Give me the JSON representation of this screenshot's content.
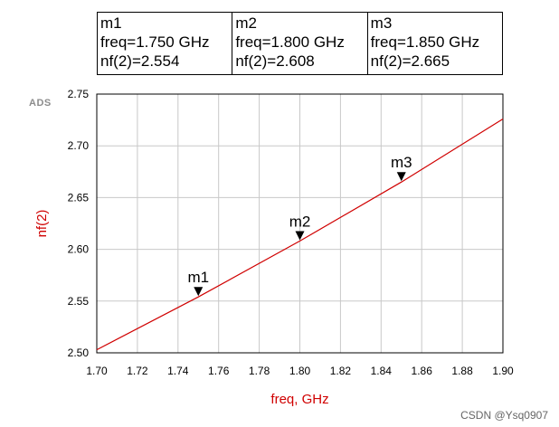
{
  "markers": [
    {
      "name": "m1",
      "freq_text": "freq=1.750 GHz",
      "nf_text": "nf(2)=2.554"
    },
    {
      "name": "m2",
      "freq_text": "freq=1.800 GHz",
      "nf_text": "nf(2)=2.608"
    },
    {
      "name": "m3",
      "freq_text": "freq=1.850 GHz",
      "nf_text": "nf(2)=2.665"
    }
  ],
  "logo_text": "ADS",
  "watermark": "CSDN @Ysq0907",
  "chart_data": {
    "type": "line",
    "xlabel": "freq, GHz",
    "ylabel": "nf(2)",
    "xlim": [
      1.7,
      1.9
    ],
    "ylim": [
      2.5,
      2.75
    ],
    "xticks": [
      "1.70",
      "1.72",
      "1.74",
      "1.76",
      "1.78",
      "1.80",
      "1.82",
      "1.84",
      "1.86",
      "1.88",
      "1.90"
    ],
    "yticks": [
      "2.50",
      "2.55",
      "2.60",
      "2.65",
      "2.70",
      "2.75"
    ],
    "grid": true,
    "line_color": "#d00000",
    "series": [
      {
        "name": "nf(2)",
        "x": [
          1.7,
          1.75,
          1.8,
          1.85,
          1.9
        ],
        "y": [
          2.503,
          2.554,
          2.608,
          2.665,
          2.726
        ]
      }
    ],
    "markers": [
      {
        "label": "m1",
        "x": 1.75,
        "y": 2.554
      },
      {
        "label": "m2",
        "x": 1.8,
        "y": 2.608
      },
      {
        "label": "m3",
        "x": 1.85,
        "y": 2.665
      }
    ]
  }
}
